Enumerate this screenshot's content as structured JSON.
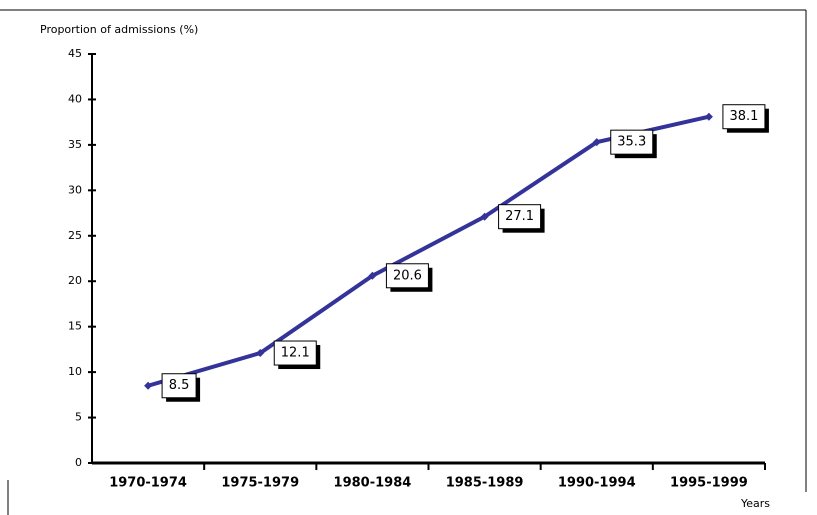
{
  "chart_data": {
    "type": "line",
    "y_axis_label": "Proportion of admissions (%)",
    "x_axis_label": "Years",
    "categories": [
      "1970-1974",
      "1975-1979",
      "1980-1984",
      "1985-1989",
      "1990-1994",
      "1995-1999"
    ],
    "series": [
      {
        "color": "#333399",
        "values": [
          8.5,
          12.1,
          20.6,
          27.1,
          35.3,
          38.1
        ]
      }
    ],
    "ylim": [
      0,
      45
    ],
    "yticks": [
      0,
      5,
      10,
      15,
      20,
      25,
      30,
      35,
      40,
      45
    ]
  }
}
